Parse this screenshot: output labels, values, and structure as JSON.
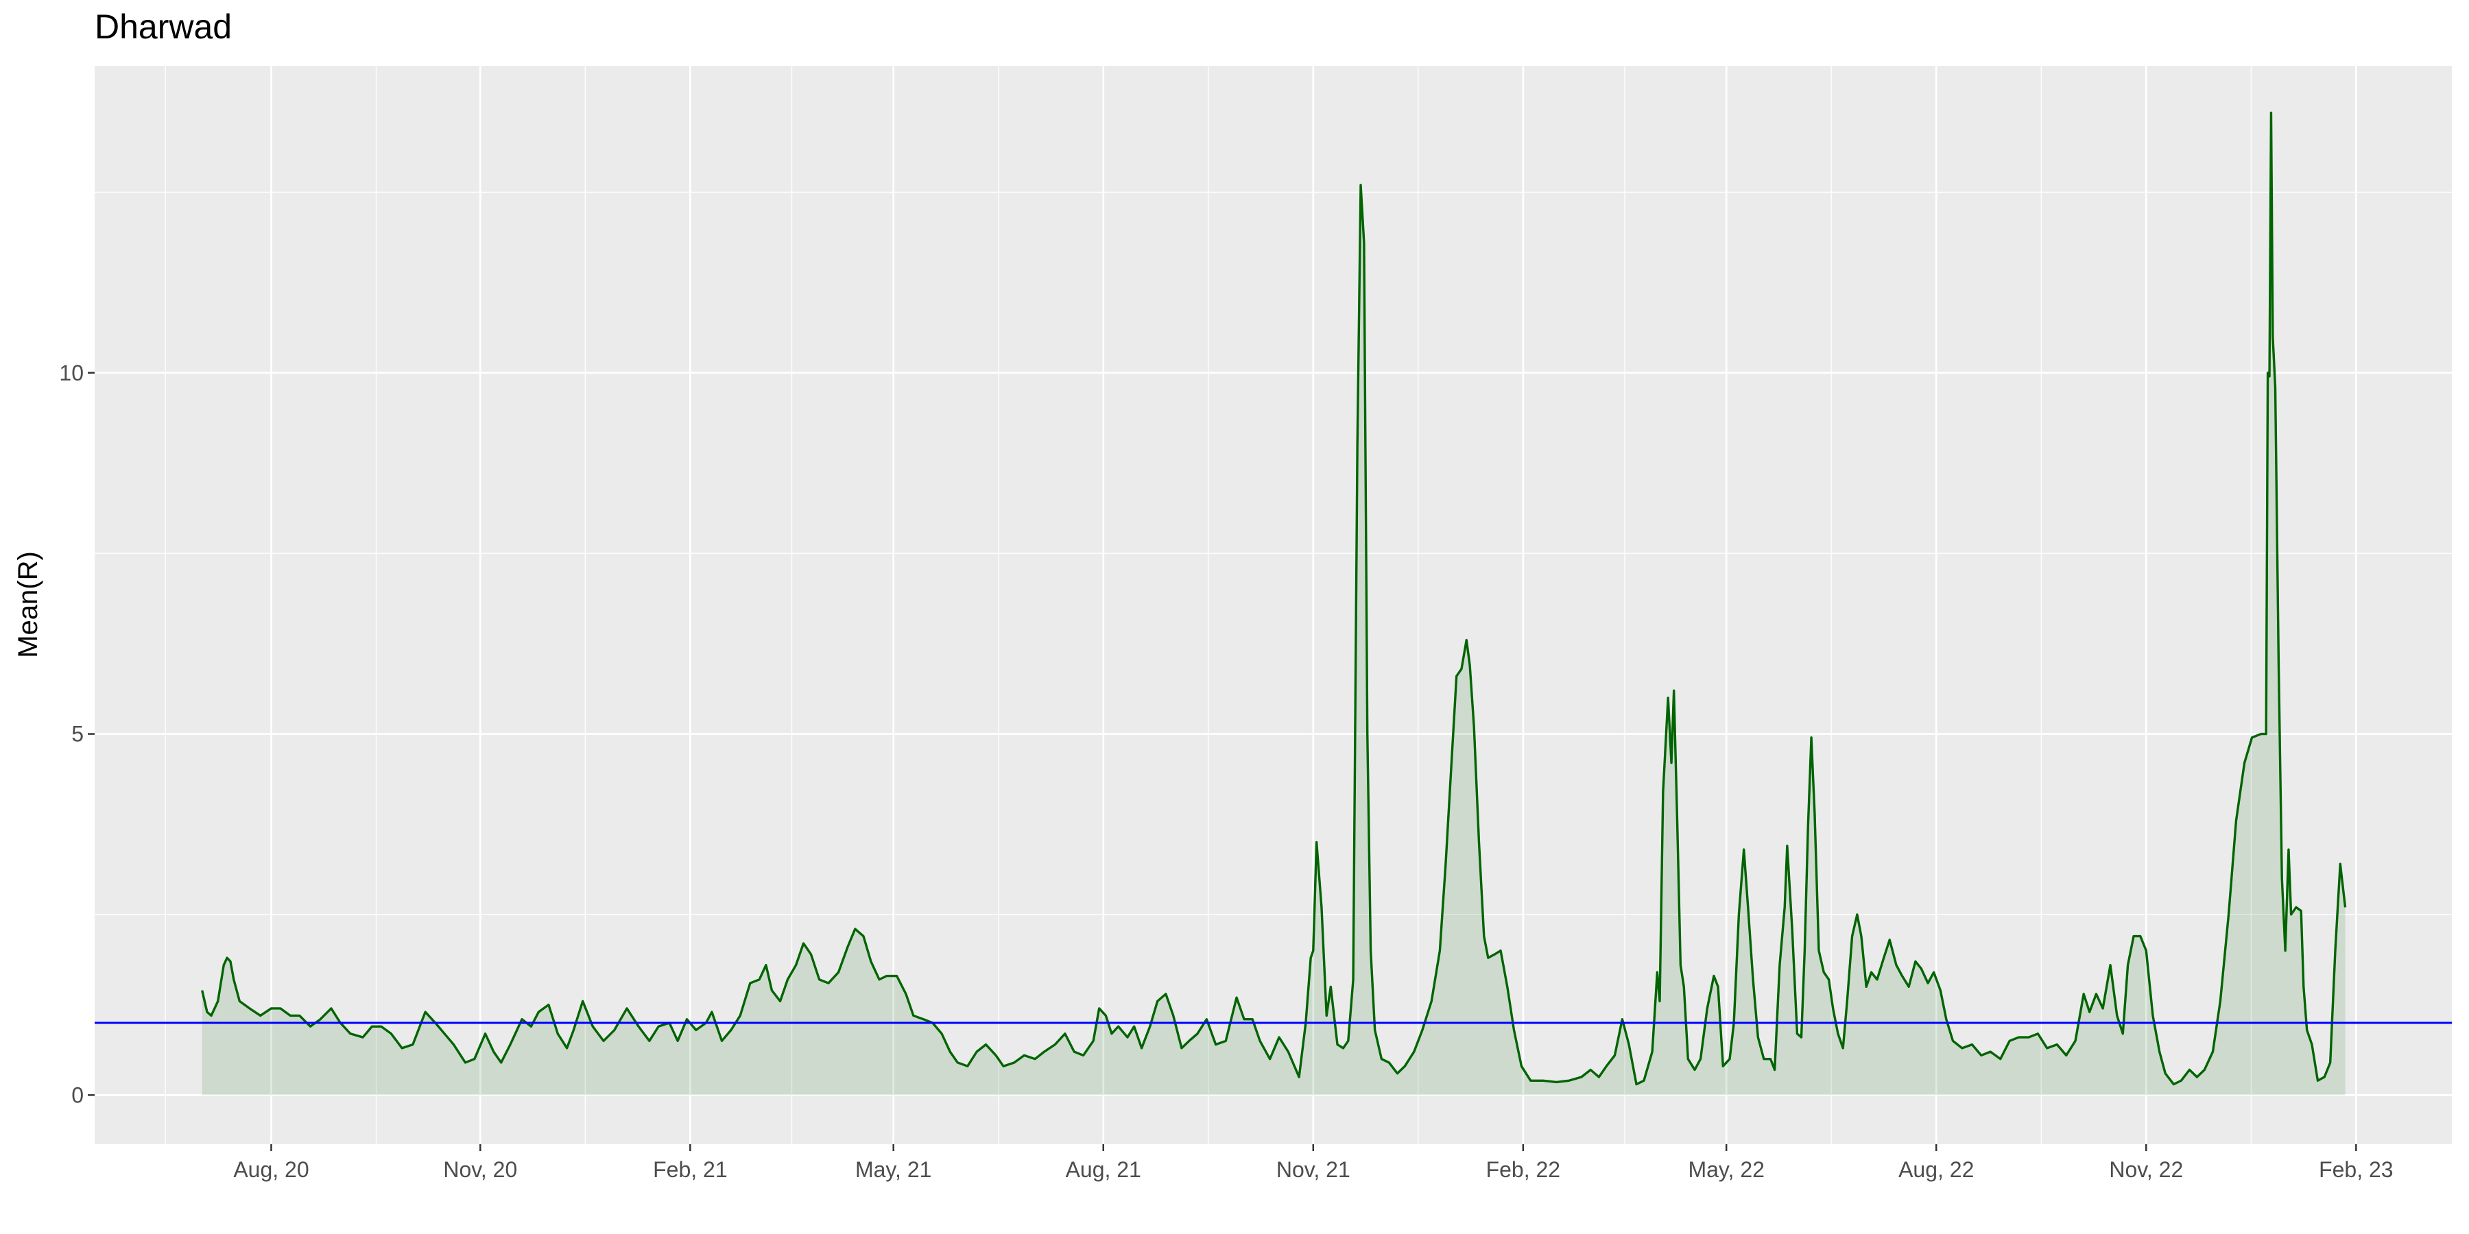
{
  "chart_data": {
    "type": "area",
    "title": "Dharwad",
    "ylabel": "Mean(R)",
    "color": "#006400",
    "fill_color": "#006400",
    "fill_opacity": 0.12,
    "hline": {
      "value": 1,
      "color": "#0000ff"
    },
    "xlim": [
      2020.37,
      2023.2
    ],
    "ylim": [
      -0.68,
      14.25
    ],
    "xticks": [
      {
        "value": 2020.582,
        "label": "Aug, 20"
      },
      {
        "value": 2020.833,
        "label": "Nov, 20"
      },
      {
        "value": 2021.085,
        "label": "Feb, 21"
      },
      {
        "value": 2021.329,
        "label": "May, 21"
      },
      {
        "value": 2021.581,
        "label": "Aug, 21"
      },
      {
        "value": 2021.833,
        "label": "Nov, 21"
      },
      {
        "value": 2022.085,
        "label": "Feb, 22"
      },
      {
        "value": 2022.329,
        "label": "May, 22"
      },
      {
        "value": 2022.581,
        "label": "Aug, 22"
      },
      {
        "value": 2022.833,
        "label": "Nov, 22"
      },
      {
        "value": 2023.085,
        "label": "Feb, 23"
      }
    ],
    "x_minor_ticks": [
      2020.455,
      2020.708,
      2020.959,
      2021.207,
      2021.455,
      2021.707,
      2021.959,
      2022.207,
      2022.455,
      2022.707,
      2022.959
    ],
    "yticks": [
      0,
      5,
      10
    ],
    "y_minor_ticks": [
      2.5,
      7.5,
      12.5
    ],
    "grid": true,
    "x": [
      2020.499,
      2020.505,
      2020.51,
      2020.518,
      2020.525,
      2020.529,
      2020.533,
      2020.537,
      2020.544,
      2020.556,
      2020.569,
      2020.582,
      2020.593,
      2020.605,
      2020.616,
      2020.629,
      2020.641,
      2020.654,
      2020.665,
      2020.677,
      2020.692,
      2020.703,
      2020.714,
      2020.726,
      2020.739,
      2020.752,
      2020.767,
      2020.779,
      2020.79,
      2020.801,
      2020.815,
      2020.826,
      2020.839,
      2020.849,
      2020.858,
      2020.869,
      2020.883,
      2020.894,
      2020.903,
      2020.915,
      2020.926,
      2020.937,
      2020.945,
      2020.956,
      2020.968,
      2020.981,
      2020.994,
      2021.009,
      2021.023,
      2021.036,
      2021.047,
      2021.06,
      2021.07,
      2021.081,
      2021.092,
      2021.104,
      2021.111,
      2021.123,
      2021.134,
      2021.145,
      2021.157,
      2021.168,
      2021.176,
      2021.183,
      2021.193,
      2021.202,
      2021.212,
      2021.221,
      2021.23,
      2021.24,
      2021.251,
      2021.263,
      2021.274,
      2021.283,
      2021.293,
      2021.302,
      2021.312,
      2021.321,
      2021.333,
      2021.344,
      2021.353,
      2021.365,
      2021.376,
      2021.387,
      2021.397,
      2021.406,
      2021.418,
      2021.429,
      2021.44,
      2021.452,
      2021.461,
      2021.474,
      2021.486,
      2021.499,
      2021.51,
      2021.523,
      2021.535,
      2021.546,
      2021.557,
      2021.569,
      2021.576,
      2021.584,
      2021.591,
      2021.599,
      2021.61,
      2021.618,
      2021.627,
      2021.637,
      2021.646,
      2021.656,
      2021.665,
      2021.675,
      2021.684,
      2021.694,
      2021.705,
      2021.716,
      2021.728,
      2021.741,
      2021.75,
      2021.76,
      2021.769,
      2021.781,
      2021.792,
      2021.803,
      2021.816,
      2021.824,
      2021.83,
      2021.833,
      2021.837,
      2021.843,
      2021.849,
      2021.854,
      2021.862,
      2021.869,
      2021.875,
      2021.881,
      2021.886,
      2021.89,
      2021.894,
      2021.898,
      2021.902,
      2021.907,
      2021.915,
      2021.924,
      2021.934,
      2021.943,
      2021.954,
      2021.964,
      2021.975,
      2021.985,
      2021.992,
      2022.0,
      2022.005,
      2022.011,
      2022.017,
      2022.021,
      2022.026,
      2022.032,
      2022.038,
      2022.043,
      2022.051,
      2022.058,
      2022.066,
      2022.074,
      2022.083,
      2022.094,
      2022.109,
      2022.125,
      2022.14,
      2022.155,
      2022.166,
      2022.176,
      2022.185,
      2022.195,
      2022.204,
      2022.212,
      2022.221,
      2022.23,
      2022.24,
      2022.246,
      2022.249,
      2022.253,
      2022.259,
      2022.263,
      2022.266,
      2022.27,
      2022.274,
      2022.278,
      2022.283,
      2022.291,
      2022.298,
      2022.306,
      2022.314,
      2022.319,
      2022.325,
      2022.333,
      2022.338,
      2022.344,
      2022.35,
      2022.355,
      2022.361,
      2022.367,
      2022.374,
      2022.382,
      2022.387,
      2022.393,
      2022.399,
      2022.402,
      2022.408,
      2022.414,
      2022.419,
      2022.423,
      2022.427,
      2022.431,
      2022.435,
      2022.44,
      2022.446,
      2022.452,
      2022.457,
      2022.463,
      2022.469,
      2022.474,
      2022.48,
      2022.486,
      2022.491,
      2022.497,
      2022.503,
      2022.51,
      2022.518,
      2022.525,
      2022.533,
      2022.54,
      2022.548,
      2022.556,
      2022.563,
      2022.571,
      2022.578,
      2022.586,
      2022.593,
      2022.601,
      2022.612,
      2022.624,
      2022.635,
      2022.646,
      2022.658,
      2022.669,
      2022.68,
      2022.692,
      2022.703,
      2022.714,
      2022.726,
      2022.737,
      2022.748,
      2022.758,
      2022.765,
      2022.773,
      2022.781,
      2022.79,
      2022.798,
      2022.805,
      2022.811,
      2022.818,
      2022.826,
      2022.833,
      2022.841,
      2022.849,
      2022.856,
      2022.866,
      2022.875,
      2022.885,
      2022.894,
      2022.903,
      2022.913,
      2022.922,
      2022.932,
      2022.941,
      2022.951,
      2022.96,
      2022.971,
      2022.977,
      2022.979,
      2022.981,
      2022.983,
      2022.985,
      2022.988,
      2022.992,
      2022.996,
      2023.0,
      2023.004,
      2023.007,
      2023.013,
      2023.019,
      2023.022,
      2023.026,
      2023.032,
      2023.039,
      2023.047,
      2023.054,
      2023.06,
      2023.066,
      2023.072
    ],
    "values": [
      1.45,
      1.15,
      1.1,
      1.3,
      1.8,
      1.9,
      1.85,
      1.6,
      1.3,
      1.2,
      1.1,
      1.2,
      1.2,
      1.1,
      1.1,
      0.95,
      1.05,
      1.2,
      1.0,
      0.85,
      0.8,
      0.95,
      0.95,
      0.85,
      0.65,
      0.7,
      1.15,
      1.0,
      0.85,
      0.7,
      0.45,
      0.5,
      0.85,
      0.6,
      0.45,
      0.7,
      1.05,
      0.95,
      1.15,
      1.25,
      0.85,
      0.65,
      0.9,
      1.3,
      0.95,
      0.75,
      0.9,
      1.2,
      0.95,
      0.75,
      0.95,
      1.0,
      0.75,
      1.05,
      0.9,
      1.0,
      1.15,
      0.75,
      0.9,
      1.1,
      1.55,
      1.6,
      1.8,
      1.45,
      1.3,
      1.6,
      1.8,
      2.1,
      1.95,
      1.6,
      1.55,
      1.7,
      2.05,
      2.3,
      2.2,
      1.85,
      1.6,
      1.65,
      1.65,
      1.4,
      1.1,
      1.05,
      1.0,
      0.85,
      0.6,
      0.45,
      0.4,
      0.6,
      0.7,
      0.55,
      0.4,
      0.45,
      0.55,
      0.5,
      0.6,
      0.7,
      0.85,
      0.6,
      0.55,
      0.75,
      1.2,
      1.1,
      0.85,
      0.95,
      0.8,
      0.95,
      0.65,
      0.95,
      1.3,
      1.4,
      1.1,
      0.65,
      0.75,
      0.85,
      1.05,
      0.7,
      0.75,
      1.35,
      1.05,
      1.05,
      0.75,
      0.5,
      0.8,
      0.6,
      0.25,
      1.0,
      1.9,
      2.0,
      3.5,
      2.6,
      1.1,
      1.5,
      0.7,
      0.65,
      0.75,
      1.6,
      9.0,
      12.6,
      11.8,
      5.0,
      2.0,
      0.9,
      0.5,
      0.45,
      0.3,
      0.4,
      0.6,
      0.9,
      1.3,
      2.0,
      3.2,
      4.8,
      5.8,
      5.9,
      6.3,
      5.95,
      5.1,
      3.5,
      2.2,
      1.9,
      1.95,
      2.0,
      1.5,
      0.9,
      0.4,
      0.2,
      0.2,
      0.18,
      0.2,
      0.25,
      0.35,
      0.25,
      0.4,
      0.55,
      1.05,
      0.7,
      0.15,
      0.2,
      0.6,
      1.7,
      1.3,
      4.2,
      5.5,
      4.6,
      5.6,
      3.8,
      1.8,
      1.5,
      0.5,
      0.35,
      0.5,
      1.2,
      1.65,
      1.5,
      0.4,
      0.5,
      1.0,
      2.5,
      3.4,
      2.6,
      1.6,
      0.8,
      0.5,
      0.5,
      0.35,
      1.8,
      2.6,
      3.45,
      2.3,
      0.85,
      0.8,
      2.0,
      3.7,
      4.95,
      3.9,
      2.0,
      1.7,
      1.6,
      1.2,
      0.85,
      0.65,
      1.3,
      2.2,
      2.5,
      2.2,
      1.5,
      1.7,
      1.6,
      1.9,
      2.15,
      1.8,
      1.65,
      1.5,
      1.85,
      1.75,
      1.55,
      1.7,
      1.45,
      1.05,
      0.75,
      0.65,
      0.7,
      0.55,
      0.6,
      0.5,
      0.75,
      0.8,
      0.8,
      0.85,
      0.65,
      0.7,
      0.55,
      0.75,
      1.4,
      1.15,
      1.4,
      1.2,
      1.8,
      1.1,
      0.85,
      1.8,
      2.2,
      2.2,
      2.0,
      1.1,
      0.6,
      0.3,
      0.15,
      0.2,
      0.35,
      0.25,
      0.35,
      0.6,
      1.3,
      2.5,
      3.8,
      4.6,
      4.95,
      5.0,
      5.0,
      10.0,
      9.95,
      13.6,
      10.5,
      9.8,
      6.0,
      3.0,
      2.0,
      3.4,
      2.5,
      2.6,
      2.55,
      1.5,
      0.9,
      0.7,
      0.2,
      0.25,
      0.45,
      2.0,
      3.2,
      2.6
    ]
  }
}
